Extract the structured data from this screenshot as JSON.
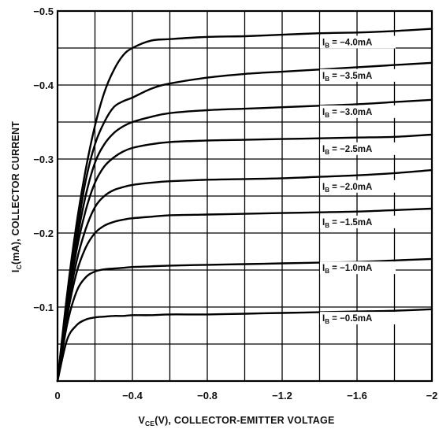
{
  "chart_data": {
    "type": "line",
    "title": "",
    "xlabel": "V",
    "xlabel_sub": "CE",
    "xlabel_rest": "(V), COLLECTOR-EMITTER VOLTAGE",
    "ylabel": "I",
    "ylabel_sub": "C",
    "ylabel_rest": "(mA), COLLECTOR CURRENT",
    "xlim": [
      0,
      -2.0
    ],
    "ylim": [
      0,
      -0.5
    ],
    "x_ticks": [
      0,
      -0.4,
      -0.8,
      -1.2,
      -1.6,
      -2.0
    ],
    "x_tick_labels": [
      "0",
      "−0.4",
      "−0.8",
      "−1.2",
      "−1.6",
      "−2"
    ],
    "y_ticks": [
      -0.1,
      -0.2,
      -0.3,
      -0.4,
      -0.5
    ],
    "y_tick_labels": [
      "−0.1",
      "−0.2",
      "−0.3",
      "−0.4",
      "−0.5"
    ],
    "grid": true,
    "legend": "none",
    "x": [
      0,
      -0.05,
      -0.1,
      -0.15,
      -0.2,
      -0.25,
      -0.3,
      -0.35,
      -0.4,
      -0.5,
      -0.6,
      -0.8,
      -1.0,
      -1.2,
      -1.4,
      -1.6,
      -1.8,
      -2.0
    ],
    "series": [
      {
        "name": "I",
        "sub": "B",
        "label_rest": " = −4.0mA",
        "values": [
          0,
          -0.115,
          -0.21,
          -0.285,
          -0.345,
          -0.39,
          -0.42,
          -0.44,
          -0.45,
          -0.46,
          -0.462,
          -0.465,
          -0.466,
          -0.468,
          -0.47,
          -0.471,
          -0.473,
          -0.476
        ]
      },
      {
        "name": "I",
        "sub": "B",
        "label_rest": " = −3.5mA",
        "values": [
          0,
          -0.11,
          -0.195,
          -0.27,
          -0.32,
          -0.35,
          -0.37,
          -0.378,
          -0.383,
          -0.395,
          -0.402,
          -0.41,
          -0.415,
          -0.418,
          -0.421,
          -0.424,
          -0.427,
          -0.43
        ]
      },
      {
        "name": "I",
        "sub": "B",
        "label_rest": " = −3.0mA",
        "values": [
          0,
          -0.105,
          -0.185,
          -0.25,
          -0.295,
          -0.32,
          -0.335,
          -0.344,
          -0.35,
          -0.357,
          -0.362,
          -0.366,
          -0.368,
          -0.37,
          -0.372,
          -0.374,
          -0.377,
          -0.38
        ]
      },
      {
        "name": "I",
        "sub": "B",
        "label_rest": " = −2.5mA",
        "values": [
          0,
          -0.1,
          -0.175,
          -0.23,
          -0.268,
          -0.29,
          -0.302,
          -0.31,
          -0.315,
          -0.32,
          -0.323,
          -0.325,
          -0.326,
          -0.327,
          -0.328,
          -0.329,
          -0.33,
          -0.333
        ]
      },
      {
        "name": "I",
        "sub": "B",
        "label_rest": " = −2.0mA",
        "values": [
          0,
          -0.092,
          -0.16,
          -0.205,
          -0.235,
          -0.25,
          -0.258,
          -0.262,
          -0.265,
          -0.268,
          -0.27,
          -0.272,
          -0.273,
          -0.274,
          -0.276,
          -0.278,
          -0.281,
          -0.285
        ]
      },
      {
        "name": "I",
        "sub": "B",
        "label_rest": " = −1.5mA",
        "values": [
          0,
          -0.085,
          -0.145,
          -0.18,
          -0.2,
          -0.21,
          -0.215,
          -0.218,
          -0.22,
          -0.222,
          -0.224,
          -0.225,
          -0.226,
          -0.227,
          -0.228,
          -0.229,
          -0.231,
          -0.233
        ]
      },
      {
        "name": "I",
        "sub": "B",
        "label_rest": " = −1.0mA",
        "values": [
          0,
          -0.075,
          -0.12,
          -0.14,
          -0.148,
          -0.151,
          -0.152,
          -0.153,
          -0.154,
          -0.155,
          -0.156,
          -0.157,
          -0.158,
          -0.159,
          -0.16,
          -0.161,
          -0.163,
          -0.165
        ]
      },
      {
        "name": "I",
        "sub": "B",
        "label_rest": " = −0.5mA",
        "values": [
          0,
          -0.055,
          -0.075,
          -0.083,
          -0.086,
          -0.087,
          -0.088,
          -0.088,
          -0.089,
          -0.089,
          -0.09,
          -0.09,
          -0.091,
          -0.092,
          -0.093,
          -0.094,
          -0.095,
          -0.097
        ]
      }
    ],
    "label_y": [
      -0.458,
      -0.413,
      -0.364,
      -0.314,
      -0.263,
      -0.215,
      -0.153,
      -0.085
    ]
  }
}
